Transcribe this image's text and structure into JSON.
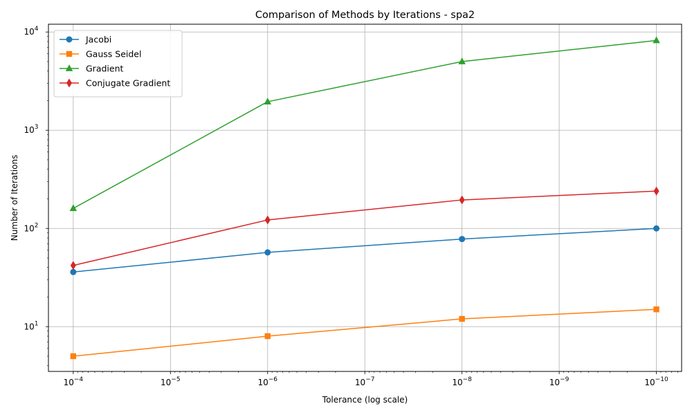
{
  "chart_data": {
    "type": "line",
    "title": "Comparison of Methods by Iterations - spa2",
    "xlabel": "Tolerance (log scale)",
    "ylabel": "Number of Iterations",
    "x": [
      0.0001,
      1e-06,
      1e-08,
      1e-10
    ],
    "x_scale": "log",
    "x_inverted": true,
    "y_scale": "log",
    "xlim": [
      0.00018,
      5.5e-11
    ],
    "ylim": [
      3.5,
      12000
    ],
    "x_ticks": [
      {
        "value": 0.0001,
        "base": "10",
        "exp": "−4"
      },
      {
        "value": 1e-05,
        "base": "10",
        "exp": "−5"
      },
      {
        "value": 1e-06,
        "base": "10",
        "exp": "−6"
      },
      {
        "value": 1e-07,
        "base": "10",
        "exp": "−7"
      },
      {
        "value": 1e-08,
        "base": "10",
        "exp": "−8"
      },
      {
        "value": 1e-09,
        "base": "10",
        "exp": "−9"
      },
      {
        "value": 1e-10,
        "base": "10",
        "exp": "−10"
      }
    ],
    "y_ticks": [
      {
        "value": 10,
        "base": "10",
        "exp": "1"
      },
      {
        "value": 100,
        "base": "10",
        "exp": "2"
      },
      {
        "value": 1000,
        "base": "10",
        "exp": "3"
      },
      {
        "value": 10000,
        "base": "10",
        "exp": "4"
      }
    ],
    "grid": true,
    "legend_position": "top-left",
    "series": [
      {
        "name": "Jacobi",
        "values": [
          36,
          57,
          78,
          100
        ],
        "color": "#1f77b4",
        "marker": "circle"
      },
      {
        "name": "Gauss Seidel",
        "values": [
          5,
          8,
          12,
          15
        ],
        "color": "#ff7f0e",
        "marker": "square"
      },
      {
        "name": "Gradient",
        "values": [
          160,
          1950,
          5000,
          8200
        ],
        "color": "#2ca02c",
        "marker": "triangle"
      },
      {
        "name": "Conjugate Gradient",
        "values": [
          42,
          122,
          195,
          240
        ],
        "color": "#d62728",
        "marker": "diamond"
      }
    ]
  }
}
